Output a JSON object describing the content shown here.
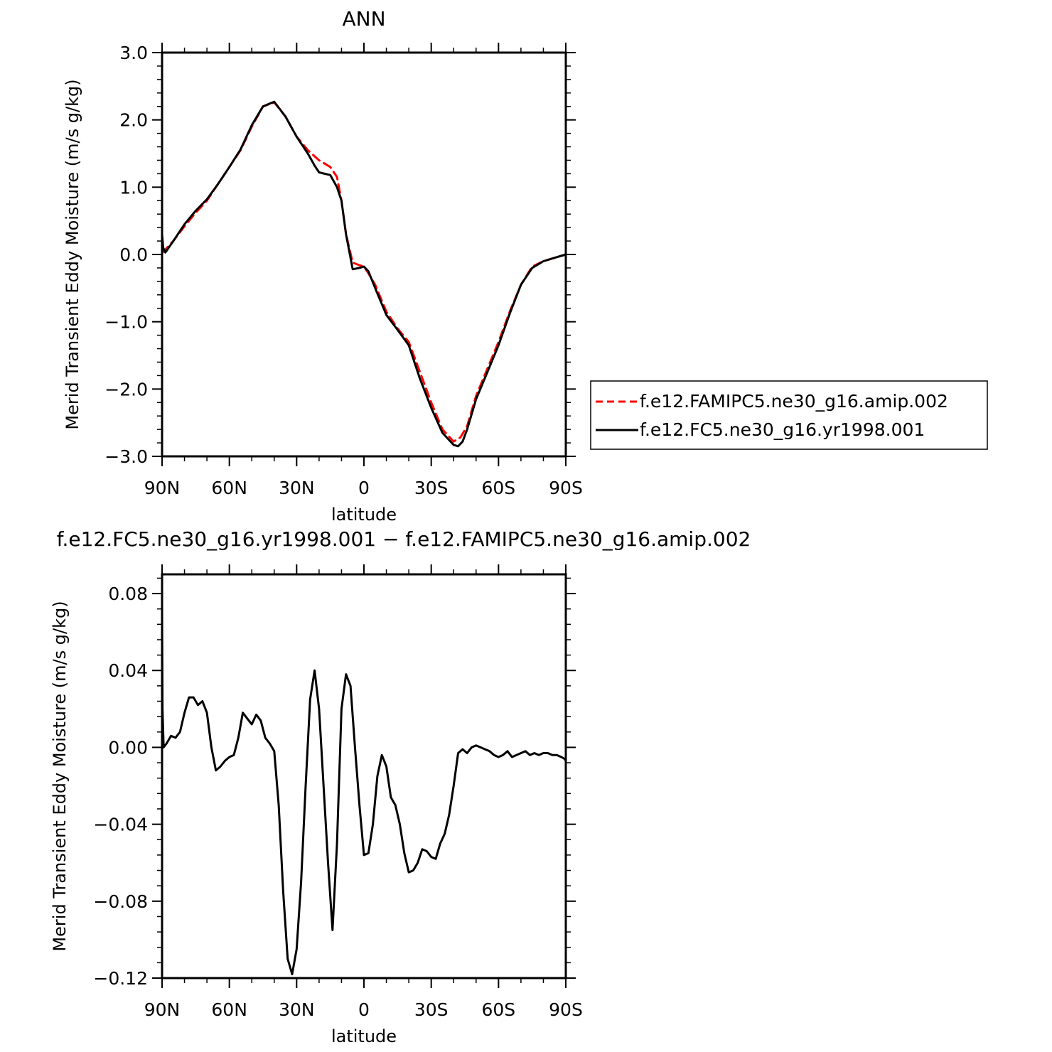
{
  "chart_data": [
    {
      "type": "line",
      "title": "ANN",
      "xlabel": "latitude",
      "ylabel": "Merid Transient Eddy Moisture (m/s g/kg)",
      "xlim": [
        90,
        -90
      ],
      "ylim": [
        -3.0,
        3.0
      ],
      "x_ticks": [
        90,
        60,
        30,
        0,
        -30,
        -60,
        -90
      ],
      "x_tick_labels": [
        "90N",
        "60N",
        "30N",
        "0",
        "30S",
        "60S",
        "90S"
      ],
      "y_ticks": [
        3,
        2,
        1,
        0,
        -1,
        -2,
        -3
      ],
      "y_tick_labels": [
        "3.0",
        "2.0",
        "1.0",
        "0.0",
        "−1.0",
        "−2.0",
        "−3.0"
      ],
      "grid": false,
      "legend_position": "right",
      "series": [
        {
          "name": "f.e12.FAMIPC5.ne30_g16.amip.002",
          "color": "#ff0000",
          "style": "dashed",
          "x": [
            90,
            85,
            80,
            75,
            70,
            65,
            60,
            55,
            50,
            45,
            40,
            35,
            30,
            25,
            20,
            15,
            12,
            10,
            8,
            5,
            2,
            0,
            -2,
            -5,
            -10,
            -15,
            -20,
            -25,
            -30,
            -35,
            -40,
            -43,
            -46,
            -50,
            -55,
            -60,
            -65,
            -70,
            -75,
            -80,
            -85,
            -90
          ],
          "y": [
            0.02,
            0.2,
            0.42,
            0.62,
            0.8,
            1.05,
            1.3,
            1.55,
            1.9,
            2.2,
            2.26,
            2.05,
            1.75,
            1.55,
            1.4,
            1.3,
            1.15,
            0.8,
            0.3,
            -0.12,
            -0.16,
            -0.18,
            -0.28,
            -0.45,
            -0.85,
            -1.1,
            -1.3,
            -1.75,
            -2.2,
            -2.6,
            -2.78,
            -2.72,
            -2.55,
            -2.1,
            -1.7,
            -1.3,
            -0.85,
            -0.45,
            -0.18,
            -0.1,
            -0.05,
            0.0
          ]
        },
        {
          "name": "f.e12.FC5.ne30_g16.yr1998.001",
          "color": "#000000",
          "style": "solid",
          "x": [
            90,
            89.5,
            88.5,
            85,
            80,
            75,
            70,
            65,
            60,
            55,
            50,
            45,
            40,
            35,
            30,
            25,
            22,
            20,
            15,
            12,
            10,
            8,
            5,
            2,
            0,
            -2,
            -5,
            -10,
            -15,
            -20,
            -25,
            -30,
            -35,
            -40,
            -42,
            -44,
            -46,
            -50,
            -55,
            -60,
            -65,
            -70,
            -75,
            -80,
            -85,
            -90
          ],
          "y": [
            0.3,
            0.1,
            0.03,
            0.2,
            0.45,
            0.65,
            0.82,
            1.05,
            1.3,
            1.56,
            1.92,
            2.2,
            2.27,
            2.05,
            1.75,
            1.5,
            1.32,
            1.22,
            1.18,
            1.0,
            0.8,
            0.3,
            -0.22,
            -0.2,
            -0.18,
            -0.25,
            -0.5,
            -0.9,
            -1.12,
            -1.35,
            -1.85,
            -2.28,
            -2.65,
            -2.83,
            -2.85,
            -2.78,
            -2.6,
            -2.15,
            -1.75,
            -1.35,
            -0.88,
            -0.45,
            -0.2,
            -0.1,
            -0.05,
            0.0
          ]
        }
      ]
    },
    {
      "type": "line",
      "title": "f.e12.FC5.ne30_g16.yr1998.001 − f.e12.FAMIPC5.ne30_g16.amip.002",
      "xlabel": "latitude",
      "ylabel": "Merid Transient Eddy Moisture (m/s g/kg)",
      "xlim": [
        90,
        -90
      ],
      "ylim": [
        -0.12,
        0.09
      ],
      "x_ticks": [
        90,
        60,
        30,
        0,
        -30,
        -60,
        -90
      ],
      "x_tick_labels": [
        "90N",
        "60N",
        "30N",
        "0",
        "30S",
        "60S",
        "90S"
      ],
      "y_ticks": [
        0.08,
        0.04,
        0.0,
        -0.04,
        -0.08,
        -0.12
      ],
      "y_tick_labels": [
        "0.08",
        "0.04",
        "0.00",
        "−0.04",
        "−0.08",
        "−0.12"
      ],
      "grid": false,
      "series": [
        {
          "color": "#000000",
          "style": "solid",
          "x": [
            90,
            89.8,
            89.3,
            88,
            86,
            84,
            82,
            80,
            78,
            76,
            74,
            72,
            70,
            68,
            66,
            64,
            62,
            60,
            58,
            56,
            54,
            52,
            50,
            48,
            46,
            44,
            42,
            40,
            38,
            36,
            34,
            32,
            30,
            28,
            26,
            24,
            22,
            20,
            18,
            16,
            14,
            12,
            10,
            8,
            6,
            4,
            2,
            0,
            -2,
            -4,
            -6,
            -8,
            -10,
            -12,
            -14,
            -16,
            -18,
            -20,
            -22,
            -24,
            -26,
            -28,
            -30,
            -32,
            -34,
            -36,
            -38,
            -40,
            -42,
            -44,
            -46,
            -48,
            -50,
            -52,
            -54,
            -56,
            -58,
            -60,
            -62,
            -64,
            -66,
            -68,
            -70,
            -72,
            -74,
            -76,
            -78,
            -80,
            -82,
            -84,
            -86,
            -88,
            -89.5,
            -90
          ],
          "y": [
            0.07,
            0.02,
            0.0,
            0.002,
            0.006,
            0.005,
            0.008,
            0.018,
            0.026,
            0.026,
            0.022,
            0.024,
            0.018,
            0.0,
            -0.012,
            -0.01,
            -0.007,
            -0.005,
            -0.004,
            0.005,
            0.018,
            0.015,
            0.012,
            0.017,
            0.014,
            0.005,
            0.002,
            -0.002,
            -0.03,
            -0.075,
            -0.11,
            -0.118,
            -0.105,
            -0.07,
            -0.02,
            0.025,
            0.04,
            0.02,
            -0.02,
            -0.06,
            -0.095,
            -0.05,
            0.02,
            0.038,
            0.032,
            0.0,
            -0.03,
            -0.056,
            -0.055,
            -0.04,
            -0.015,
            -0.004,
            -0.01,
            -0.026,
            -0.03,
            -0.04,
            -0.055,
            -0.065,
            -0.064,
            -0.06,
            -0.053,
            -0.054,
            -0.057,
            -0.058,
            -0.05,
            -0.045,
            -0.035,
            -0.02,
            -0.003,
            -0.001,
            -0.003,
            0.0,
            0.001,
            0.0,
            -0.001,
            -0.002,
            -0.004,
            -0.005,
            -0.004,
            -0.002,
            -0.005,
            -0.004,
            -0.003,
            -0.002,
            -0.004,
            -0.003,
            -0.004,
            -0.003,
            -0.003,
            -0.004,
            -0.004,
            -0.005,
            -0.006,
            -0.007
          ]
        }
      ]
    }
  ]
}
